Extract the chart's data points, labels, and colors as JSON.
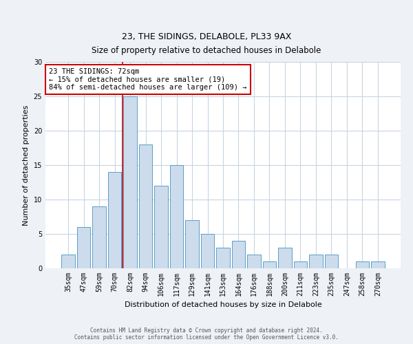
{
  "title1": "23, THE SIDINGS, DELABOLE, PL33 9AX",
  "title2": "Size of property relative to detached houses in Delabole",
  "xlabel": "Distribution of detached houses by size in Delabole",
  "ylabel": "Number of detached properties",
  "categories": [
    "35sqm",
    "47sqm",
    "59sqm",
    "70sqm",
    "82sqm",
    "94sqm",
    "106sqm",
    "117sqm",
    "129sqm",
    "141sqm",
    "153sqm",
    "164sqm",
    "176sqm",
    "188sqm",
    "200sqm",
    "211sqm",
    "223sqm",
    "235sqm",
    "247sqm",
    "258sqm",
    "270sqm"
  ],
  "values": [
    2,
    6,
    9,
    14,
    25,
    18,
    12,
    15,
    7,
    5,
    3,
    4,
    2,
    1,
    3,
    1,
    2,
    2,
    0,
    1,
    1
  ],
  "bar_color": "#ccdcec",
  "bar_edge_color": "#5a9ec8",
  "vline_x_idx": 3.5,
  "vline_color": "#cc0000",
  "annotation_text": "23 THE SIDINGS: 72sqm\n← 15% of detached houses are smaller (19)\n84% of semi-detached houses are larger (109) →",
  "annotation_box_color": "white",
  "annotation_box_edge_color": "#cc0000",
  "ylim": [
    0,
    30
  ],
  "yticks": [
    0,
    5,
    10,
    15,
    20,
    25,
    30
  ],
  "footer1": "Contains HM Land Registry data © Crown copyright and database right 2024.",
  "footer2": "Contains public sector information licensed under the Open Government Licence v3.0.",
  "bg_color": "#eef2f7",
  "plot_bg_color": "#ffffff",
  "grid_color": "#c8d4e0",
  "title_fontsize": 9,
  "xlabel_fontsize": 8,
  "ylabel_fontsize": 8,
  "tick_fontsize": 7,
  "annotation_fontsize": 7.5,
  "footer_fontsize": 5.5
}
